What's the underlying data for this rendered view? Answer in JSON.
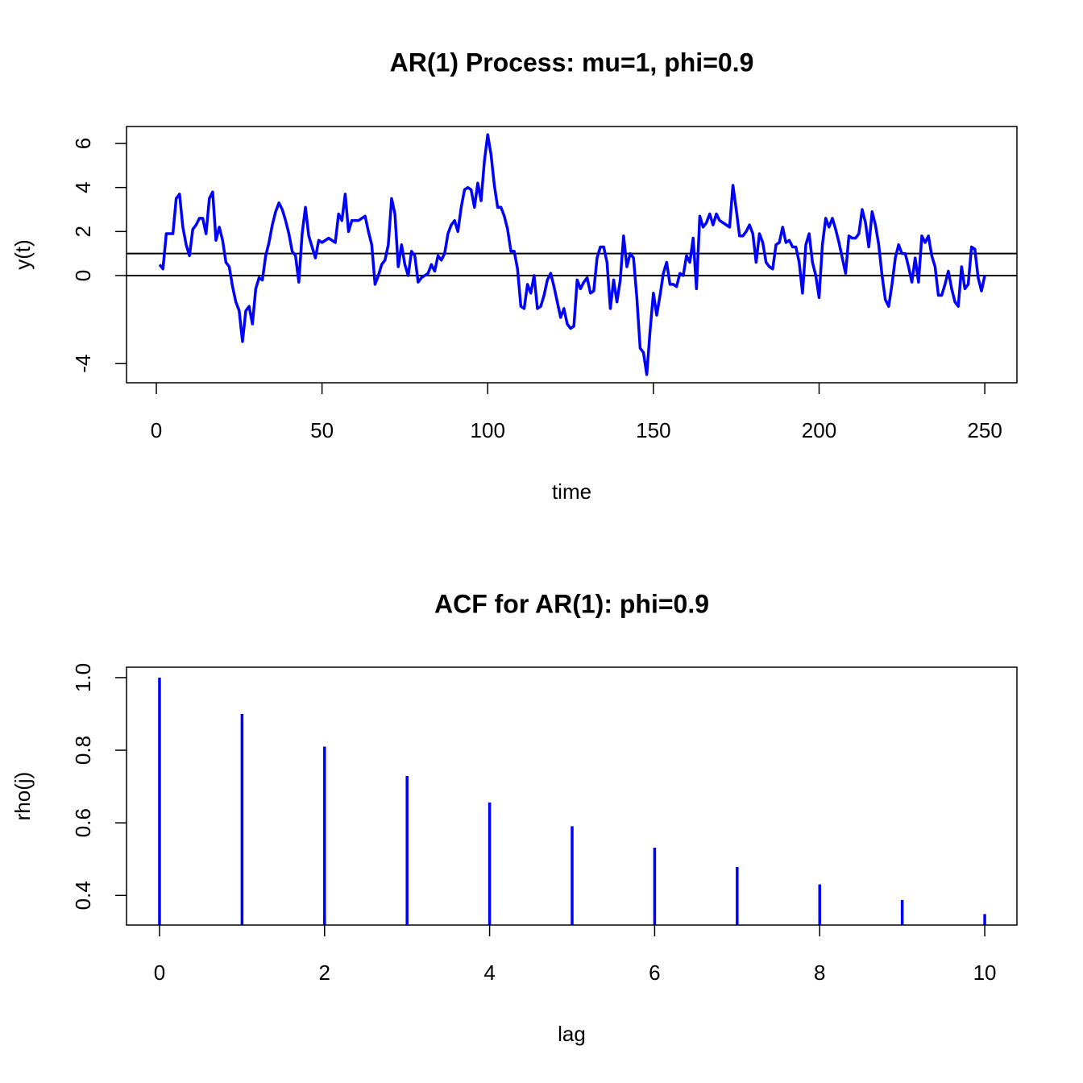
{
  "chart_data": [
    {
      "type": "line",
      "title": "AR(1) Process: mu=1, phi=0.9",
      "xlabel": "time",
      "ylabel": "y(t)",
      "x": [
        1,
        2,
        3,
        4,
        5,
        6,
        7,
        8,
        9,
        10,
        11,
        12,
        13,
        14,
        15,
        16,
        17,
        18,
        19,
        20,
        21,
        22,
        23,
        24,
        25,
        26,
        27,
        28,
        29,
        30,
        31,
        32,
        33,
        34,
        35,
        36,
        37,
        38,
        39,
        40,
        41,
        42,
        43,
        44,
        45,
        46,
        47,
        48,
        49,
        50,
        51,
        52,
        53,
        54,
        55,
        56,
        57,
        58,
        59,
        60,
        61,
        62,
        63,
        64,
        65,
        66,
        67,
        68,
        69,
        70,
        71,
        72,
        73,
        74,
        75,
        76,
        77,
        78,
        79,
        80,
        81,
        82,
        83,
        84,
        85,
        86,
        87,
        88,
        89,
        90,
        91,
        92,
        93,
        94,
        95,
        96,
        97,
        98,
        99,
        100,
        101,
        102,
        103,
        104,
        105,
        106,
        107,
        108,
        109,
        110,
        111,
        112,
        113,
        114,
        115,
        116,
        117,
        118,
        119,
        120,
        121,
        122,
        123,
        124,
        125,
        126,
        127,
        128,
        129,
        130,
        131,
        132,
        133,
        134,
        135,
        136,
        137,
        138,
        139,
        140,
        141,
        142,
        143,
        144,
        145,
        146,
        147,
        148,
        149,
        150,
        151,
        152,
        153,
        154,
        155,
        156,
        157,
        158,
        159,
        160,
        161,
        162,
        163,
        164,
        165,
        166,
        167,
        168,
        169,
        170,
        171,
        172,
        173,
        174,
        175,
        176,
        177,
        178,
        179,
        180,
        181,
        182,
        183,
        184,
        185,
        186,
        187,
        188,
        189,
        190,
        191,
        192,
        193,
        194,
        195,
        196,
        197,
        198,
        199,
        200,
        201,
        202,
        203,
        204,
        205,
        206,
        207,
        208,
        209,
        210,
        211,
        212,
        213,
        214,
        215,
        216,
        217,
        218,
        219,
        220,
        221,
        222,
        223,
        224,
        225,
        226,
        227,
        228,
        229,
        230,
        231,
        232,
        233,
        234,
        235,
        236,
        237,
        238,
        239,
        240,
        241,
        242,
        243,
        244,
        245,
        246,
        247,
        248,
        249,
        250
      ],
      "series": [
        {
          "color": "#0000ff",
          "values": [
            0.5,
            0.3,
            1.9,
            1.9,
            1.9,
            3.5,
            3.7,
            2.2,
            1.4,
            0.9,
            2.1,
            2.3,
            2.6,
            2.6,
            1.9,
            3.5,
            3.8,
            1.6,
            2.2,
            1.6,
            0.6,
            0.4,
            -0.5,
            -1.2,
            -1.6,
            -3.0,
            -1.6,
            -1.4,
            -2.2,
            -0.6,
            -0.1,
            -0.2,
            0.9,
            1.5,
            2.3,
            2.9,
            3.3,
            3.0,
            2.5,
            1.9,
            1.1,
            0.9,
            -0.3,
            1.9,
            3.1,
            1.8,
            1.3,
            0.8,
            1.6,
            1.5,
            1.6,
            1.7,
            1.6,
            1.5,
            2.8,
            2.5,
            3.7,
            2.0,
            2.5,
            2.5,
            2.5,
            2.6,
            2.7,
            2.0,
            1.4,
            -0.4,
            0.0,
            0.5,
            0.7,
            1.4,
            3.5,
            2.8,
            0.4,
            1.4,
            0.5,
            0.0,
            1.1,
            0.9,
            -0.3,
            -0.1,
            0.0,
            0.1,
            0.5,
            0.2,
            0.9,
            0.7,
            1.0,
            1.9,
            2.3,
            2.5,
            2.0,
            3.1,
            3.9,
            4.0,
            3.9,
            3.1,
            4.2,
            3.4,
            5.2,
            6.4,
            5.5,
            4.1,
            3.1,
            3.1,
            2.7,
            2.1,
            1.1,
            1.1,
            0.3,
            -1.4,
            -1.5,
            -0.4,
            -0.8,
            0.0,
            -1.5,
            -1.4,
            -0.9,
            -0.2,
            0.1,
            -0.5,
            -1.2,
            -1.9,
            -1.5,
            -2.2,
            -2.4,
            -2.3,
            -0.2,
            -0.6,
            -0.3,
            -0.1,
            -0.8,
            -0.7,
            0.8,
            1.3,
            1.3,
            0.6,
            -1.5,
            -0.2,
            -1.2,
            -0.2,
            1.8,
            0.4,
            1.0,
            0.8,
            -1.0,
            -3.3,
            -3.5,
            -4.5,
            -2.5,
            -0.8,
            -1.8,
            -0.9,
            0.1,
            0.6,
            -0.4,
            -0.4,
            -0.5,
            0.1,
            0.0,
            0.9,
            0.6,
            1.7,
            -0.6,
            2.7,
            2.2,
            2.4,
            2.8,
            2.3,
            2.8,
            2.5,
            2.4,
            2.3,
            2.2,
            4.1,
            3.0,
            1.8,
            1.8,
            2.0,
            2.3,
            1.9,
            0.6,
            1.9,
            1.5,
            0.6,
            0.4,
            0.3,
            1.4,
            1.5,
            2.2,
            1.5,
            1.6,
            1.3,
            1.3,
            0.6,
            -0.8,
            1.4,
            1.9,
            0.6,
            0.0,
            -1.0,
            1.4,
            2.6,
            2.2,
            2.6,
            2.1,
            1.5,
            0.8,
            0.1,
            1.8,
            1.7,
            1.7,
            1.9,
            3.0,
            2.4,
            1.3,
            2.9,
            2.3,
            1.4,
            0.0,
            -1.1,
            -1.4,
            -0.4,
            0.8,
            1.4,
            1.0,
            1.0,
            0.4,
            -0.3,
            0.8,
            -0.3,
            1.8,
            1.5,
            1.8,
            0.9,
            0.4,
            -0.9,
            -0.9,
            -0.4,
            0.2,
            -0.6,
            -1.2,
            -1.4,
            0.4,
            -0.6,
            -0.4,
            1.3,
            1.2,
            -0.1,
            -0.7,
            0.0
          ]
        }
      ],
      "hlines": [
        0,
        1
      ],
      "xlim": [
        -9,
        259.7
      ],
      "xticks": [
        0,
        50,
        100,
        150,
        200,
        250
      ],
      "ylim": [
        -4.87,
        6.77
      ],
      "yticks": [
        -4,
        0,
        2,
        4,
        6
      ]
    },
    {
      "type": "bar",
      "title": "ACF for AR(1): phi=0.9",
      "xlabel": "lag",
      "ylabel": "rho(j)",
      "x": [
        0,
        1,
        2,
        3,
        4,
        5,
        6,
        7,
        8,
        9,
        10
      ],
      "series": [
        {
          "color": "#0000ff",
          "values": [
            1,
            0.9,
            0.81,
            0.729,
            0.6561,
            0.59049,
            0.531441,
            0.4782969,
            0.43046721,
            0.387420489,
            0.3486784401
          ]
        }
      ],
      "xlim": [
        -0.4,
        10.39
      ],
      "xticks": [
        0,
        2,
        4,
        6,
        8,
        10
      ],
      "ylim": [
        0.3184,
        1.0287
      ],
      "yticks": [
        0.4,
        0.6,
        0.8,
        {
          "value": 1,
          "label": "1.0"
        }
      ]
    }
  ]
}
